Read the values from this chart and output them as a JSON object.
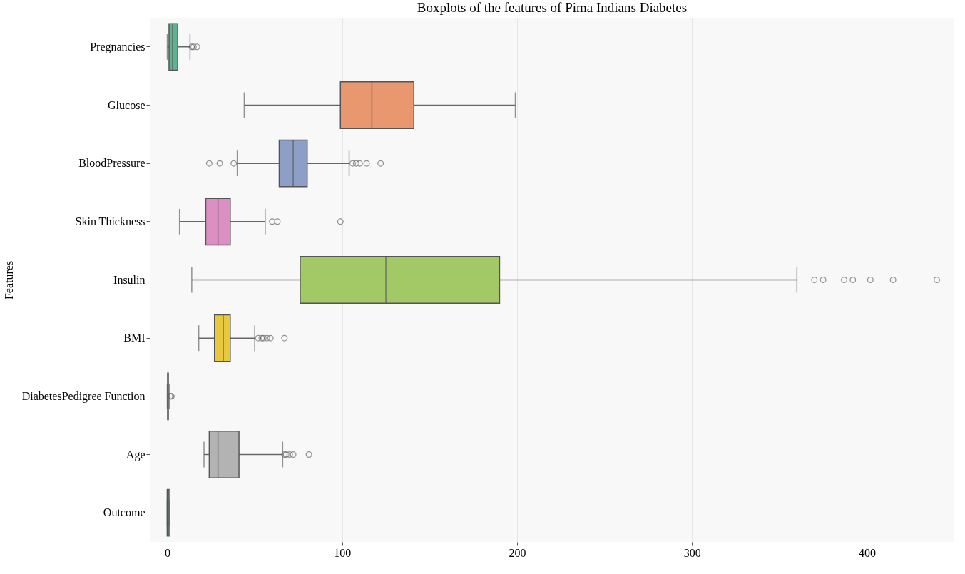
{
  "chart_data": {
    "type": "box",
    "title": "Boxplots of the features of Pima Indians Diabetes",
    "ylabel": "Features",
    "orientation": "horizontal",
    "grid": "x",
    "categories": [
      "Pregnancies",
      "Glucose",
      "BloodPressure",
      "Skin Thickness",
      "Insulin",
      "BMI",
      "DiabetesPedigree Function",
      "Age",
      "Outcome"
    ],
    "colors": [
      "#5fb290",
      "#e9976f",
      "#8d9fc7",
      "#dc8fc2",
      "#a2c966",
      "#e8c83f",
      "#d4bc96",
      "#b3b3b3",
      "#6bb296"
    ],
    "boxes": [
      {
        "low": 0,
        "q1": 1,
        "median": 3,
        "q3": 6,
        "high": 13,
        "outliers": [
          14,
          15,
          17
        ]
      },
      {
        "low": 44,
        "q1": 99,
        "median": 117,
        "q3": 141,
        "high": 199
      },
      {
        "low": 40,
        "q1": 64,
        "median": 72,
        "q3": 80,
        "high": 104,
        "outliers": [
          24,
          30,
          38,
          106,
          108,
          110,
          114,
          122
        ]
      },
      {
        "low": 7,
        "q1": 22,
        "median": 29,
        "q3": 36,
        "high": 56,
        "outliers": [
          60,
          63,
          99
        ]
      },
      {
        "low": 14,
        "q1": 76,
        "median": 125,
        "q3": 190,
        "high": 360,
        "outliers": [
          370,
          375,
          387,
          392,
          402,
          415,
          440
        ]
      },
      {
        "low": 18,
        "q1": 27,
        "median": 32,
        "q3": 36,
        "high": 50,
        "outliers": [
          52,
          54,
          55,
          57,
          59,
          67
        ]
      },
      {
        "low": 0,
        "q1": 0.2,
        "median": 0.4,
        "q3": 0.6,
        "high": 1.2,
        "outliers": [
          1.5,
          2,
          2.4
        ]
      },
      {
        "low": 21,
        "q1": 24,
        "median": 29,
        "q3": 41,
        "high": 66,
        "outliers": [
          67,
          68,
          70,
          72,
          81
        ]
      },
      {
        "low": 0,
        "q1": 0,
        "median": 0,
        "q3": 1,
        "high": 1
      }
    ],
    "xlim": [
      -10,
      450
    ],
    "xticks": [
      0,
      100,
      200,
      300,
      400
    ]
  }
}
